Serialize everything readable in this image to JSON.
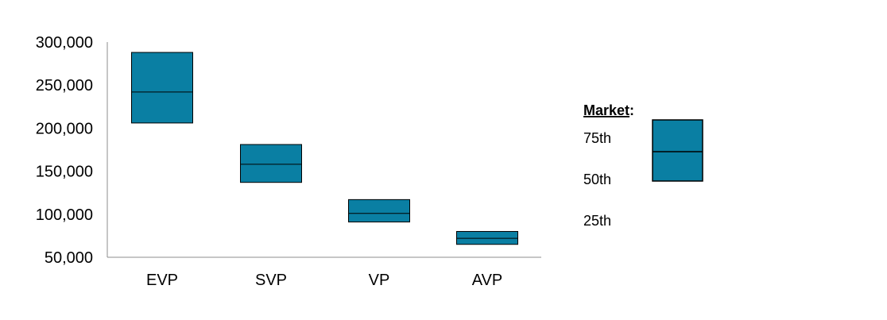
{
  "chart_data": {
    "type": "box",
    "categories": [
      "EVP",
      "SVP",
      "VP",
      "AVP"
    ],
    "boxes": [
      {
        "category": "EVP",
        "p25": 206000,
        "p50": 242000,
        "p75": 288000
      },
      {
        "category": "SVP",
        "p25": 137000,
        "p50": 158000,
        "p75": 181000
      },
      {
        "category": "VP",
        "p25": 91000,
        "p50": 101000,
        "p75": 117000
      },
      {
        "category": "AVP",
        "p25": 65000,
        "p50": 72000,
        "p75": 80000
      }
    ],
    "ylim": [
      50000,
      300000
    ],
    "yticks": [
      "300,000",
      "250,000",
      "200,000",
      "150,000",
      "100,000",
      "50,000"
    ],
    "ytick_values": [
      300000,
      250000,
      200000,
      150000,
      100000,
      50000
    ],
    "grid": false,
    "box_color": "#0A7FA3",
    "legend": {
      "title": "Market",
      "title_suffix": ":",
      "labels": [
        "75th",
        "50th",
        "25th"
      ]
    }
  }
}
